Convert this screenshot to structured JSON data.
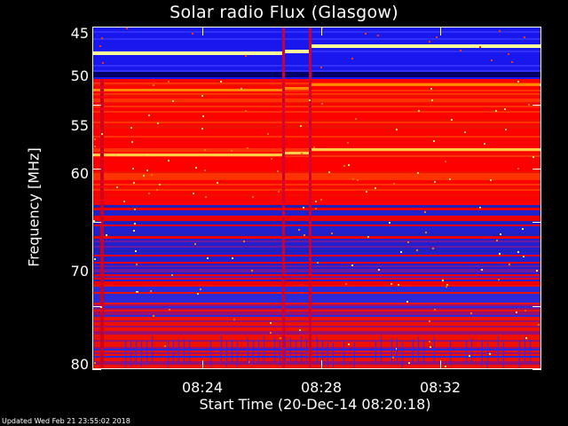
{
  "chart_data": {
    "type": "heatmap",
    "title": "Solar radio Flux (Glasgow)",
    "ylabel": "Frequency [MHz]",
    "xlabel": "Start Time (20-Dec-14 08:20:18)",
    "yticks": [
      "45",
      "50",
      "55",
      "60",
      "70",
      "80"
    ],
    "ytick_values": [
      45,
      50,
      55,
      60,
      70,
      80
    ],
    "xticks": [
      "08:24",
      "08:28",
      "08:32"
    ],
    "ylim": [
      45,
      80
    ],
    "y_scale": "reciprocal",
    "colors": {
      "background": "#000000",
      "low": "#1a1aff",
      "mid": "#ff0000",
      "high": "#ffff99"
    }
  },
  "footer": {
    "updated": "Updated Wed Feb 21 23:55:02 2018"
  }
}
